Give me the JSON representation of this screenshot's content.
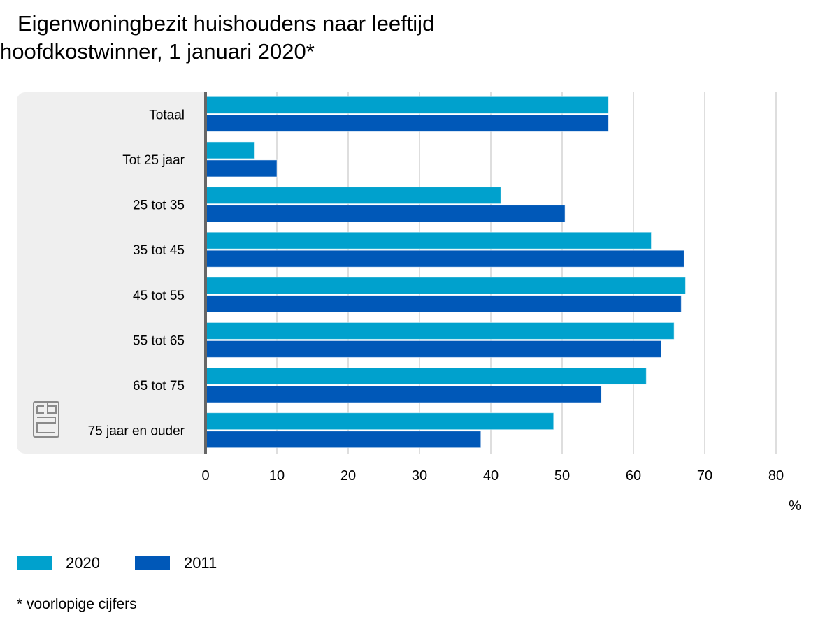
{
  "title": {
    "line1": "Eigenwoningbezit huishoudens naar leeftijd",
    "line2": "hoofdkostwinner, 1 januari 2020*"
  },
  "footnote": "* voorlopige cijfers",
  "colors": {
    "2020": "#00a1cd",
    "2011": "#0058b8",
    "panel": "#efefef",
    "axis": "#666666",
    "grid": "#c8c8c8"
  },
  "chart_data": {
    "type": "bar",
    "orientation": "horizontal",
    "title": "Eigenwoningbezit huishoudens naar leeftijd hoofdkostwinner, 1 januari 2020*",
    "categories": [
      "Totaal",
      "Tot 25 jaar",
      "25 tot 35",
      "35 tot 45",
      "45 tot 55",
      "55 tot 65",
      "65 tot 75",
      "75 jaar en ouder"
    ],
    "series": [
      {
        "name": "2020",
        "values": [
          56.5,
          6.9,
          41.4,
          62.5,
          67.3,
          65.7,
          61.8,
          48.8
        ]
      },
      {
        "name": "2011",
        "values": [
          56.5,
          10.0,
          50.4,
          67.1,
          66.7,
          63.9,
          55.5,
          38.6
        ]
      }
    ],
    "xlabel": "%",
    "ylabel": "",
    "xlim": [
      0,
      80
    ],
    "xticks": [
      "0",
      "10",
      "20",
      "30",
      "40",
      "50",
      "60",
      "70",
      "80"
    ],
    "grid": true,
    "legend": "bottom-left"
  }
}
